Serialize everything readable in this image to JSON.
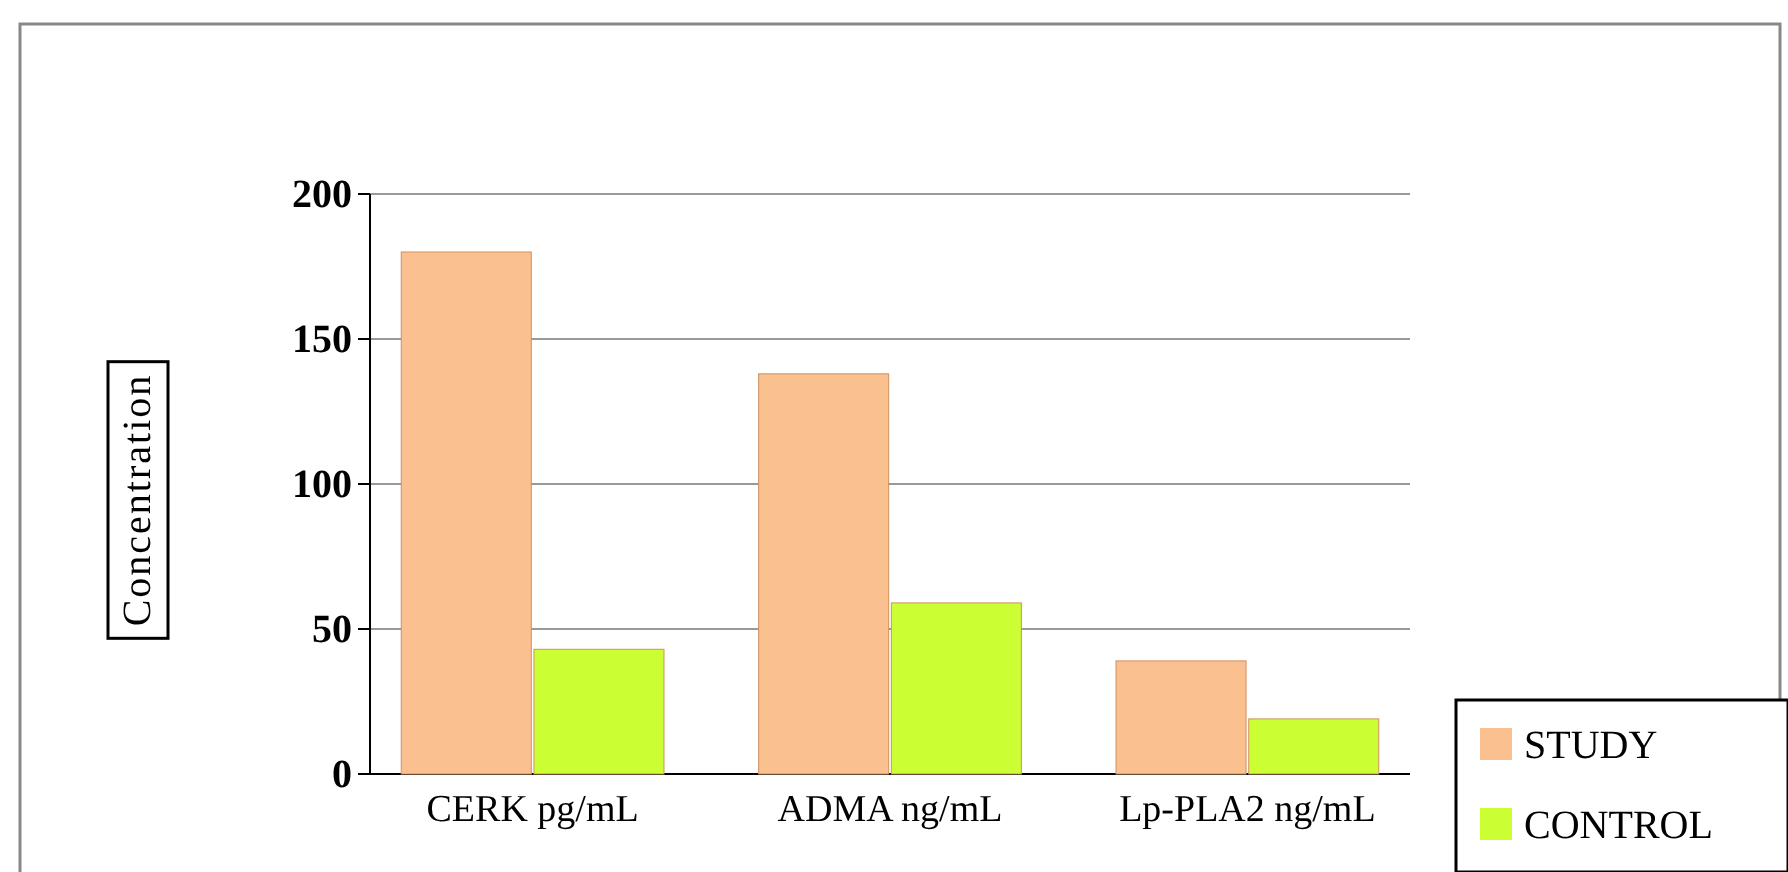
{
  "chart_data": {
    "type": "bar",
    "ylabel": "Concentration",
    "categories": [
      "CERK pg/mL",
      "ADMA ng/mL",
      "Lp-PLA2 ng/mL"
    ],
    "series": [
      {
        "name": "STUDY",
        "color": "#fac090",
        "values": [
          180,
          138,
          39
        ]
      },
      {
        "name": "CONTROL",
        "color": "#ccff33",
        "values": [
          43,
          59,
          19
        ]
      }
    ],
    "ylim": [
      0,
      200
    ],
    "yticks": [
      0,
      50,
      100,
      150,
      200
    ],
    "grid": "y",
    "legend": "bottom right"
  }
}
